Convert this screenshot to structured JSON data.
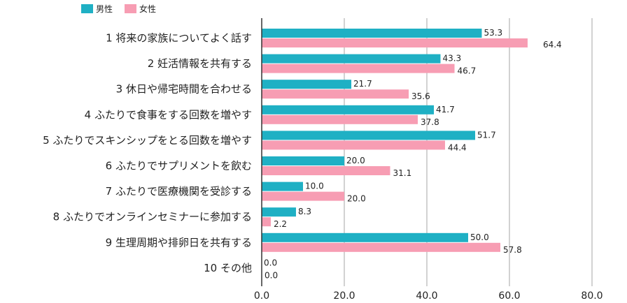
{
  "chart_data": {
    "type": "bar",
    "orientation": "horizontal",
    "categories": [
      "1 将来の家族についてよく話す",
      "2 妊活情報を共有する",
      "3 休日や帰宅時間を合わせる",
      "4 ふたりで食事をする回数を増やす",
      "5 ふたりでスキンシップをとる回数を増やす",
      "6 ふたりでサプリメントを飲む",
      "7 ふたりで医療機関を受診する",
      "8 ふたりでオンラインセミナーに参加する",
      "9 生理周期や排卵日を共有する",
      "10 その他"
    ],
    "series": [
      {
        "name": "男性",
        "color": "#1fb0c4",
        "values": [
          53.3,
          43.3,
          21.7,
          41.7,
          51.7,
          20.0,
          10.0,
          8.3,
          50.0,
          0.0
        ],
        "labels": [
          "53.3",
          "43.3",
          "21.7",
          "41.7",
          "51.7",
          "20.0",
          "10.0",
          "8.3",
          "50.0",
          "0.0"
        ]
      },
      {
        "name": "女性",
        "color": "#f79db3",
        "values": [
          64.4,
          46.7,
          35.6,
          37.8,
          44.4,
          31.1,
          20.0,
          2.2,
          57.8,
          0.0
        ],
        "labels": [
          "64.4",
          "46.7",
          "35.6",
          "37.8",
          "44.4",
          "31.1",
          "20.0",
          "2.2",
          "57.8",
          "0.0"
        ]
      }
    ],
    "xlim": [
      0,
      80
    ],
    "xticks": [
      "0.0",
      "20.0",
      "40.0",
      "60.0",
      "80.0"
    ],
    "xtick_values": [
      0,
      20,
      40,
      60,
      80
    ],
    "grid": true,
    "legend_position": "top-left"
  }
}
